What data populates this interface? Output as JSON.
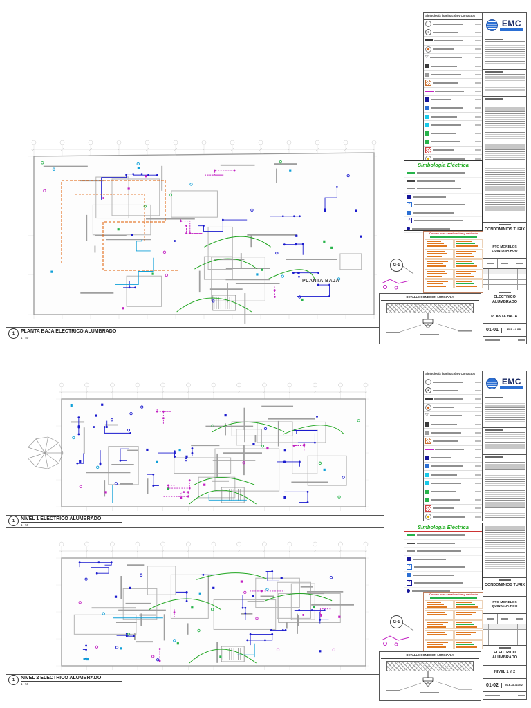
{
  "brand": {
    "name": "EMC",
    "accent": "#2b6fd4",
    "navy": "#12235f"
  },
  "project": {
    "name": "CONDOMINIOS TURIX",
    "location_line1": "PTO MORELOS",
    "location_line2": "QUINTANA ROO"
  },
  "legend": {
    "title": "Simbología Iluminación y Contactos",
    "rows": [
      {
        "icon": "surface-lamp-icon",
        "shape": "circle",
        "color": "#777777"
      },
      {
        "icon": "recessed-lamp-icon",
        "shape": "circle-dot",
        "color": "#555555"
      },
      {
        "icon": "led-strip-icon",
        "shape": "bar",
        "color": "#3a3a3a"
      },
      {
        "icon": "wall-sconce-icon",
        "shape": "lamp",
        "color": "#d2601a"
      },
      {
        "icon": "tv-outlet-icon",
        "shape": "tri",
        "color": "#666666"
      },
      {
        "icon": "speaker-icon",
        "shape": "square",
        "color": "#3a3a3a"
      },
      {
        "icon": "equipment-box-icon",
        "shape": "square",
        "color": "#9a9a9a"
      },
      {
        "icon": "extractor-icon",
        "shape": "hatch",
        "color": "#c96f2f"
      },
      {
        "icon": "circuit-run-icon",
        "shape": "hline",
        "color": "#c221c2"
      },
      {
        "icon": "outlet-220v-icon",
        "shape": "square",
        "color": "#15159a"
      },
      {
        "icon": "outlet-120v-icon",
        "shape": "square",
        "color": "#2b6fd4"
      },
      {
        "icon": "outlet-gfci-icon",
        "shape": "square",
        "color": "#19c9e8"
      },
      {
        "icon": "outlet-wp-icon",
        "shape": "square",
        "color": "#19c9e8"
      },
      {
        "icon": "switch-single-icon",
        "shape": "square",
        "color": "#27b34a"
      },
      {
        "icon": "switch-double-icon",
        "shape": "square",
        "color": "#27b34a"
      },
      {
        "icon": "panel-board-icon",
        "shape": "hatch",
        "color": "#d04040"
      },
      {
        "icon": "emergency-lamp-icon",
        "shape": "lamp",
        "color": "#e0b000"
      },
      {
        "icon": "ground-rod-icon",
        "shape": "tree",
        "color": "#27b34a"
      }
    ]
  },
  "electrical_legend": {
    "title": "Simbología  Eléctrica",
    "rows": [
      {
        "icon": "wire-circuit-icon",
        "shape": "hline",
        "color": "#27b34a"
      },
      {
        "icon": "wire-neutral-icon",
        "shape": "hline",
        "color": "#444444"
      },
      {
        "icon": "wire-return-icon",
        "shape": "hline",
        "color": "#888888"
      },
      {
        "icon": "junction-box-icon",
        "shape": "square",
        "color": "#15159a"
      },
      {
        "icon": "ceiling-box-icon",
        "shape": "xsquare",
        "color": "#2b6fd4"
      },
      {
        "icon": "register-box-icon",
        "shape": "square",
        "color": "#2b6fd4"
      },
      {
        "icon": "panel-icon",
        "shape": "xsquare",
        "color": "#15159a"
      },
      {
        "icon": "ground-node-icon",
        "shape": "dot",
        "color": "#15159a"
      }
    ]
  },
  "cuadro": {
    "title": "Cuadro para  canalización  y  cableado"
  },
  "gmark": {
    "label": "G-1"
  },
  "detail": {
    "title": "DETALLE CONEXION LUMINARIA"
  },
  "sheet1": {
    "plan_label": "PLANTA BAJA",
    "view_number": "1",
    "view_title": "PLANTA BAJA ELECTRICO ALUMBRADO",
    "view_scale": "1 : 50",
    "titleblock": {
      "discipline": "ELECTRICO ALUMBRADO",
      "subtitle": "PLANTA BAJA.",
      "number": "01-01",
      "code": "ELE-AL-PB"
    }
  },
  "sheet2": {
    "view1_number": "1",
    "view1_title": "NIVEL 1 ELECTRICO ALUMBRADO",
    "view1_scale": "1 : 50",
    "view2_number": "1",
    "view2_title": "NIVEL 2 ELECTRICO ALUMBRADO",
    "view2_scale": "1 : 50",
    "titleblock": {
      "discipline": "ELECTRICO ALUMBRADO",
      "subtitle": "NIVEL 1 Y 2",
      "number": "01-02",
      "code": "ELE-AL-N1-N2"
    }
  }
}
